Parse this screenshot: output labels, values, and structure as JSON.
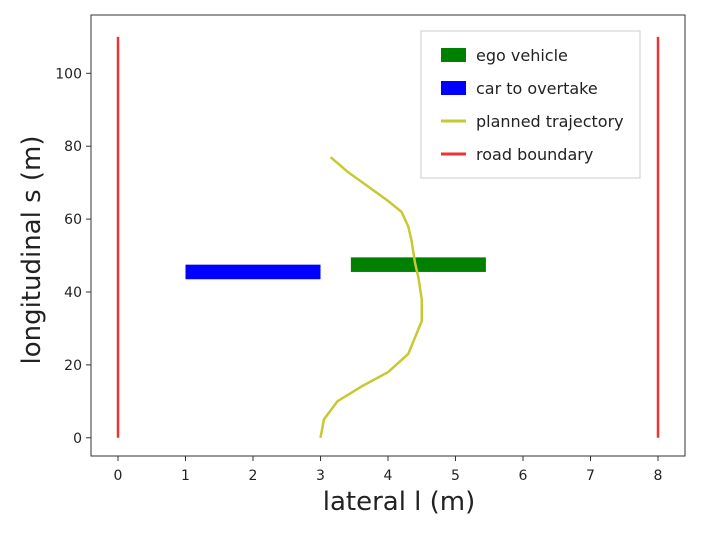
{
  "chart_data": {
    "type": "line",
    "xlabel": "lateral l (m)",
    "ylabel": "longitudinal s (m)",
    "xlim": [
      -0.4,
      8.4
    ],
    "ylim": [
      -5,
      116
    ],
    "x_ticks": [
      0,
      1,
      2,
      3,
      4,
      5,
      6,
      7,
      8
    ],
    "y_ticks": [
      0,
      20,
      40,
      60,
      80,
      100
    ],
    "grid": false,
    "legend_position": "top-right",
    "series": [
      {
        "name": "ego vehicle",
        "kind": "rectangle",
        "color": "#008000",
        "x_range": [
          3.45,
          5.45
        ],
        "y_range": [
          45.5,
          49.5
        ]
      },
      {
        "name": "car to overtake",
        "kind": "rectangle",
        "color": "#0000ff",
        "x_range": [
          1.0,
          3.0
        ],
        "y_range": [
          43.5,
          47.5
        ]
      },
      {
        "name": "planned trajectory",
        "kind": "line",
        "color": "#c8c832",
        "x": [
          3.0,
          3.05,
          3.25,
          3.6,
          4.0,
          4.3,
          4.5,
          4.5,
          4.45,
          4.4,
          4.35,
          4.3,
          4.2,
          4.0,
          3.7,
          3.4,
          3.15
        ],
        "y": [
          0,
          5,
          10,
          14,
          18,
          23,
          32,
          38,
          44,
          48,
          54,
          58,
          62,
          65,
          69,
          73,
          77
        ]
      },
      {
        "name": "road boundary",
        "kind": "vertical-lines",
        "color": "#ee3333",
        "x": [
          0,
          8
        ],
        "y_range": [
          0,
          110
        ]
      }
    ]
  }
}
